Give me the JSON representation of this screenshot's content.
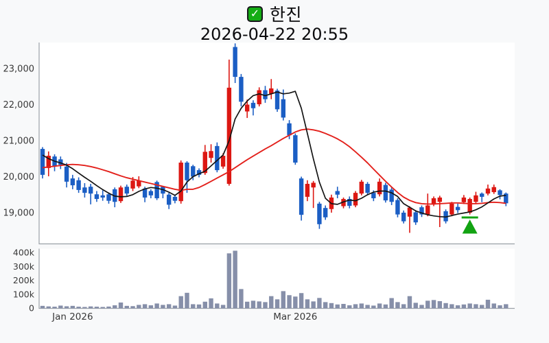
{
  "header": {
    "checkbox_icon": "check-icon",
    "checkbox_glyph": "✓",
    "checkbox_color": "#15ad15",
    "title": "한진",
    "subtitle": "2026-04-22 20:55"
  },
  "chart_data": {
    "type": "candlestick_with_volume",
    "title": "한진",
    "timestamp": "2026-04-22 20:55",
    "colors": {
      "up_candle": "#dc1712",
      "down_candle": "#1b5ec4",
      "ma_short_line": "#141414",
      "ma_long_line": "#e3201b",
      "volume_bar": "#868fa9",
      "marker_green": "#12a312",
      "plot_bg": "#ffffff",
      "page_bg": "#f8f9fa",
      "axis_line": "#9aa0a6",
      "tick_text": "#383838"
    },
    "price_axis": {
      "tick_labels": [
        "23,000",
        "22,000",
        "21,000",
        "20,000",
        "19,000"
      ],
      "tick_values": [
        23000,
        22000,
        21000,
        20000,
        19000
      ]
    },
    "volume_axis": {
      "tick_labels": [
        "400k",
        "300k",
        "200k",
        "100k",
        "0"
      ],
      "tick_values": [
        400,
        300,
        200,
        100,
        0
      ],
      "unit": "thousand_shares"
    },
    "x_axis": {
      "labels": [
        {
          "text": "Jan 2026",
          "index": 5
        },
        {
          "text": "Mar 2026",
          "index": 42
        }
      ]
    },
    "marker": {
      "type": "triangle-up-with-bar",
      "index": 71,
      "color": "#12a312"
    },
    "candles_format": [
      "open",
      "high",
      "low",
      "close",
      "volume_k"
    ],
    "candles": [
      [
        20770,
        20820,
        19950,
        20050,
        18
      ],
      [
        20240,
        20700,
        20010,
        20580,
        14
      ],
      [
        20560,
        20620,
        20150,
        20290,
        12
      ],
      [
        20480,
        20560,
        20210,
        20330,
        20
      ],
      [
        20280,
        20380,
        19700,
        19860,
        15
      ],
      [
        19950,
        20050,
        19650,
        19760,
        18
      ],
      [
        19900,
        19980,
        19550,
        19630,
        12
      ],
      [
        19700,
        19820,
        19420,
        19550,
        10
      ],
      [
        19720,
        19800,
        19230,
        19530,
        14
      ],
      [
        19510,
        19600,
        19300,
        19380,
        12
      ],
      [
        19480,
        19620,
        19330,
        19420,
        10
      ],
      [
        19510,
        19560,
        19250,
        19330,
        13
      ],
      [
        19650,
        19700,
        19150,
        19300,
        22
      ],
      [
        19320,
        19750,
        19270,
        19700,
        42
      ],
      [
        19720,
        19780,
        19470,
        19530,
        18
      ],
      [
        19670,
        19990,
        19600,
        19890,
        16
      ],
      [
        19730,
        20010,
        19680,
        19890,
        25
      ],
      [
        19670,
        19720,
        19290,
        19420,
        30
      ],
      [
        19600,
        19650,
        19400,
        19480,
        22
      ],
      [
        19850,
        19890,
        19350,
        19400,
        35
      ],
      [
        19720,
        19740,
        19400,
        19530,
        25
      ],
      [
        19500,
        19550,
        19100,
        19220,
        30
      ],
      [
        19440,
        19500,
        19260,
        19330,
        20
      ],
      [
        19320,
        20450,
        19250,
        20390,
        88
      ],
      [
        20390,
        20430,
        19550,
        19900,
        112
      ],
      [
        20290,
        20330,
        19900,
        20000,
        30
      ],
      [
        20180,
        20230,
        19980,
        20050,
        28
      ],
      [
        20100,
        20880,
        20050,
        20690,
        48
      ],
      [
        20520,
        20900,
        20390,
        20710,
        72
      ],
      [
        20850,
        20950,
        20120,
        20180,
        35
      ],
      [
        20280,
        20650,
        20220,
        20580,
        25
      ],
      [
        19800,
        23250,
        19750,
        22470,
        396
      ],
      [
        23600,
        23700,
        22600,
        22770,
        415
      ],
      [
        22770,
        22850,
        21950,
        22080,
        139
      ],
      [
        21810,
        22140,
        21630,
        22000,
        48
      ],
      [
        22050,
        22120,
        21700,
        21900,
        55
      ],
      [
        22010,
        22480,
        21950,
        22400,
        50
      ],
      [
        22400,
        22520,
        22050,
        22150,
        45
      ],
      [
        22300,
        22710,
        22150,
        22450,
        88
      ],
      [
        22390,
        22440,
        21800,
        21870,
        65
      ],
      [
        22150,
        22420,
        21560,
        21640,
        124
      ],
      [
        21480,
        21570,
        21040,
        21150,
        95
      ],
      [
        21150,
        21200,
        20330,
        20390,
        85
      ],
      [
        19950,
        20000,
        18780,
        18940,
        110
      ],
      [
        19440,
        19900,
        19320,
        19800,
        65
      ],
      [
        19700,
        19880,
        19130,
        19830,
        50
      ],
      [
        19250,
        19300,
        18550,
        18680,
        75
      ],
      [
        19130,
        19200,
        18800,
        18870,
        45
      ],
      [
        19100,
        19500,
        19000,
        19420,
        38
      ],
      [
        19600,
        19720,
        19400,
        19500,
        28
      ],
      [
        19180,
        19420,
        19120,
        19380,
        32
      ],
      [
        19380,
        19450,
        19120,
        19190,
        22
      ],
      [
        19200,
        19600,
        19150,
        19550,
        30
      ],
      [
        19530,
        19910,
        19480,
        19860,
        35
      ],
      [
        19800,
        19850,
        19480,
        19550,
        25
      ],
      [
        19550,
        19620,
        19320,
        19400,
        20
      ],
      [
        19510,
        19950,
        19450,
        19860,
        35
      ],
      [
        19770,
        19830,
        19280,
        19340,
        28
      ],
      [
        19640,
        19700,
        19210,
        19300,
        74
      ],
      [
        19350,
        19400,
        18870,
        18950,
        45
      ],
      [
        19000,
        19060,
        18700,
        18760,
        30
      ],
      [
        18890,
        19180,
        18440,
        19140,
        88
      ],
      [
        19010,
        19070,
        18660,
        18730,
        40
      ],
      [
        19150,
        19200,
        18880,
        18950,
        25
      ],
      [
        18950,
        19530,
        18900,
        19200,
        55
      ],
      [
        19250,
        19450,
        19180,
        19400,
        60
      ],
      [
        19300,
        19470,
        18600,
        19420,
        52
      ],
      [
        19040,
        19090,
        18700,
        18760,
        38
      ],
      [
        18950,
        19300,
        18900,
        19250,
        30
      ],
      [
        19160,
        19250,
        18990,
        19070,
        22
      ],
      [
        19290,
        19490,
        19240,
        19420,
        28
      ],
      [
        19000,
        19420,
        18950,
        19380,
        35
      ],
      [
        19300,
        19580,
        19250,
        19480,
        30
      ],
      [
        19530,
        19560,
        19290,
        19440,
        25
      ],
      [
        19530,
        19780,
        19480,
        19670,
        62
      ],
      [
        19570,
        19780,
        19520,
        19710,
        35
      ],
      [
        19620,
        19650,
        19370,
        19490,
        22
      ],
      [
        19530,
        19560,
        19180,
        19260,
        30
      ]
    ],
    "ma_short": [
      20600,
      20500,
      20430,
      20380,
      20320,
      20220,
      20100,
      19980,
      19870,
      19750,
      19640,
      19540,
      19460,
      19440,
      19450,
      19500,
      19590,
      19660,
      19700,
      19680,
      19640,
      19570,
      19480,
      19600,
      19850,
      20000,
      20080,
      20150,
      20300,
      20450,
      20600,
      21000,
      21600,
      21900,
      22100,
      22250,
      22300,
      22250,
      22300,
      22350,
      22300,
      22320,
      22370,
      21900,
      21200,
      20500,
      19850,
      19400,
      19250,
      19230,
      19300,
      19350,
      19330,
      19400,
      19500,
      19570,
      19600,
      19600,
      19550,
      19450,
      19250,
      19150,
      19050,
      18990,
      18940,
      18910,
      18890,
      18880,
      18920,
      18960,
      18990,
      19020,
      19080,
      19160,
      19270,
      19380,
      19460,
      19480
    ],
    "ma_long": [
      20250,
      20270,
      20290,
      20310,
      20330,
      20340,
      20330,
      20310,
      20280,
      20240,
      20190,
      20140,
      20080,
      20020,
      19970,
      19930,
      19890,
      19850,
      19810,
      19770,
      19730,
      19690,
      19650,
      19620,
      19650,
      19650,
      19700,
      19780,
      19870,
      19960,
      20050,
      20140,
      20250,
      20360,
      20470,
      20570,
      20670,
      20770,
      20860,
      20960,
      21060,
      21150,
      21240,
      21300,
      21320,
      21300,
      21260,
      21200,
      21130,
      21050,
      20950,
      20830,
      20690,
      20540,
      20380,
      20210,
      20040,
      19870,
      19710,
      19560,
      19430,
      19340,
      19280,
      19250,
      19240,
      19240,
      19250,
      19260,
      19270,
      19270,
      19260,
      19250,
      19250,
      19260,
      19280,
      19290,
      19280,
      19260
    ]
  }
}
